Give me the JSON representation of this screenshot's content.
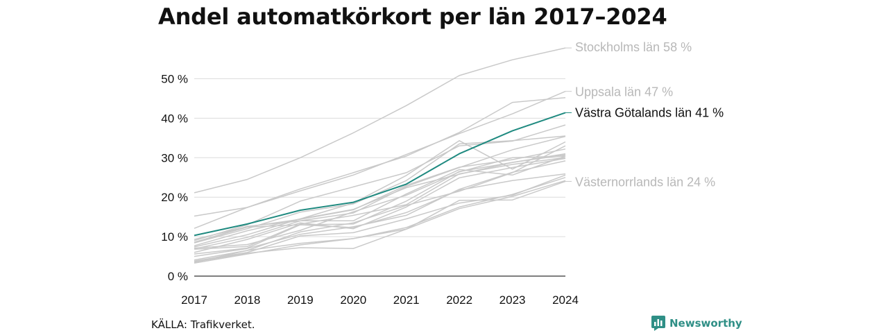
{
  "title": "Andel automatkörkort per län 2017–2024",
  "source": "KÄLLA: Trafikverket.",
  "brand": "Newsworthy",
  "colors": {
    "highlight": "#1f8a80",
    "muted": "#c9c9c9",
    "muted_label": "#b8b8b8",
    "text": "#111111",
    "brand": "#2f8f86"
  },
  "chart_data": {
    "type": "line",
    "x": [
      "2017",
      "2018",
      "2019",
      "2020",
      "2021",
      "2022",
      "2023",
      "2024"
    ],
    "y_ticks": [
      "0 %",
      "10 %",
      "20 %",
      "30 %",
      "40 %",
      "50 %"
    ],
    "ylim": [
      0,
      60
    ],
    "grid": true,
    "highlight": {
      "name": "Västra Götalands län 41 %",
      "values": [
        10.3,
        13.2,
        16.7,
        18.7,
        23.3,
        31.0,
        36.8,
        41.4
      ]
    },
    "labeled": [
      {
        "name": "Stockholms län 58 %",
        "values": [
          21.1,
          24.5,
          30.0,
          36.3,
          43.2,
          50.8,
          54.8,
          57.8
        ]
      },
      {
        "name": "Uppsala län 47 %",
        "values": [
          12.1,
          17.4,
          21.6,
          25.6,
          30.8,
          36.1,
          41.1,
          46.8
        ]
      },
      {
        "name": "Västernorrlands län 24 %",
        "values": [
          3.5,
          6.5,
          8.3,
          9.5,
          11.9,
          19.2,
          19.3,
          24.0
        ]
      }
    ],
    "series": [
      {
        "values": [
          15.2,
          17.4,
          22.1,
          26.2,
          30.4,
          36.4,
          44.0,
          45.2
        ]
      },
      {
        "values": [
          9.0,
          13.0,
          19.0,
          22.6,
          26.2,
          33.0,
          34.2,
          38.3
        ]
      },
      {
        "values": [
          8.4,
          12.0,
          16.2,
          18.3,
          24.2,
          33.5,
          34.3,
          35.5
        ]
      },
      {
        "values": [
          7.7,
          11.5,
          14.5,
          18.5,
          25.5,
          34.3,
          27.1,
          34.0
        ]
      },
      {
        "values": [
          8.5,
          12.6,
          14.0,
          16.0,
          22.7,
          27.5,
          32.0,
          35.4
        ]
      },
      {
        "values": [
          9.3,
          12.5,
          14.4,
          16.8,
          23.0,
          27.6,
          29.5,
          32.2
        ]
      },
      {
        "values": [
          7.4,
          10.5,
          14.5,
          16.9,
          22.4,
          25.8,
          28.8,
          30.7
        ]
      },
      {
        "values": [
          6.9,
          9.8,
          14.0,
          14.0,
          20.8,
          27.0,
          25.6,
          30.4
        ]
      },
      {
        "values": [
          6.0,
          9.3,
          13.5,
          12.0,
          17.5,
          24.9,
          27.5,
          29.8
        ]
      },
      {
        "values": [
          5.0,
          7.0,
          10.6,
          12.5,
          15.4,
          22.0,
          26.3,
          29.2
        ]
      },
      {
        "values": [
          4.1,
          6.5,
          11.2,
          13.5,
          17.9,
          21.5,
          26.2,
          33.0
        ]
      },
      {
        "values": [
          3.8,
          6.0,
          10.2,
          11.0,
          14.5,
          18.5,
          20.5,
          25.6
        ]
      },
      {
        "values": [
          3.3,
          5.6,
          7.9,
          9.5,
          12.3,
          17.5,
          20.7,
          25.0
        ]
      },
      {
        "values": [
          3.6,
          5.8,
          7.2,
          7.0,
          11.9,
          17.1,
          20.2,
          24.2
        ]
      },
      {
        "values": [
          8.6,
          12.4,
          13.0,
          12.3,
          16.1,
          21.8,
          24.2,
          25.9
        ]
      },
      {
        "values": [
          6.8,
          7.5,
          13.2,
          15.4,
          18.1,
          25.9,
          28.3,
          30.0
        ]
      },
      {
        "values": [
          7.1,
          8.0,
          11.6,
          16.3,
          20.5,
          26.4,
          30.0,
          30.4
        ]
      },
      {
        "values": [
          5.6,
          7.1,
          13.0,
          13.2,
          19.0,
          26.5,
          28.8,
          31.0
        ]
      }
    ]
  }
}
